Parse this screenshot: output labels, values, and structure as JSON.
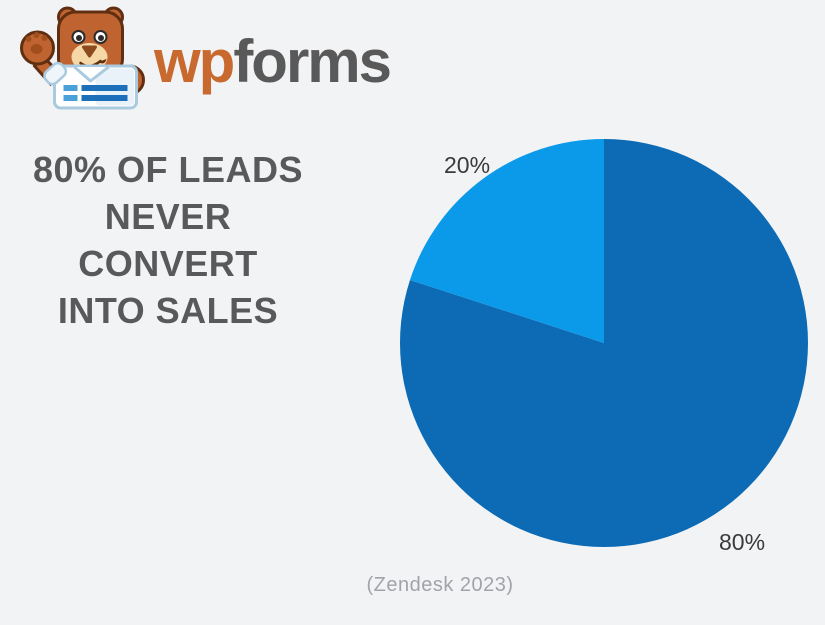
{
  "page": {
    "background": "#f2f3f5"
  },
  "logo": {
    "mascot_icon": "wpforms-bear-mascot",
    "brand_prefix": "wp",
    "brand_suffix": "forms",
    "prefix_color": "#c8692f",
    "suffix_color": "#595959"
  },
  "headline": {
    "line1": "80% OF LEADS",
    "line2": "NEVER CONVERT",
    "line3": "INTO SALES",
    "color": "#58595b"
  },
  "source_caption": "(Zendesk 2023)",
  "chart_data": {
    "type": "pie",
    "title": "80% OF LEADS NEVER CONVERT INTO SALES",
    "slices": [
      {
        "label": "80%",
        "value": 80,
        "color": "#0c6bb4"
      },
      {
        "label": "20%",
        "value": 20,
        "color": "#0a9ae9"
      }
    ],
    "start_angle_deg": 0,
    "direction": "clockwise",
    "label_color": "#3a3a3c",
    "legend": "none",
    "source": "(Zendesk 2023)"
  }
}
